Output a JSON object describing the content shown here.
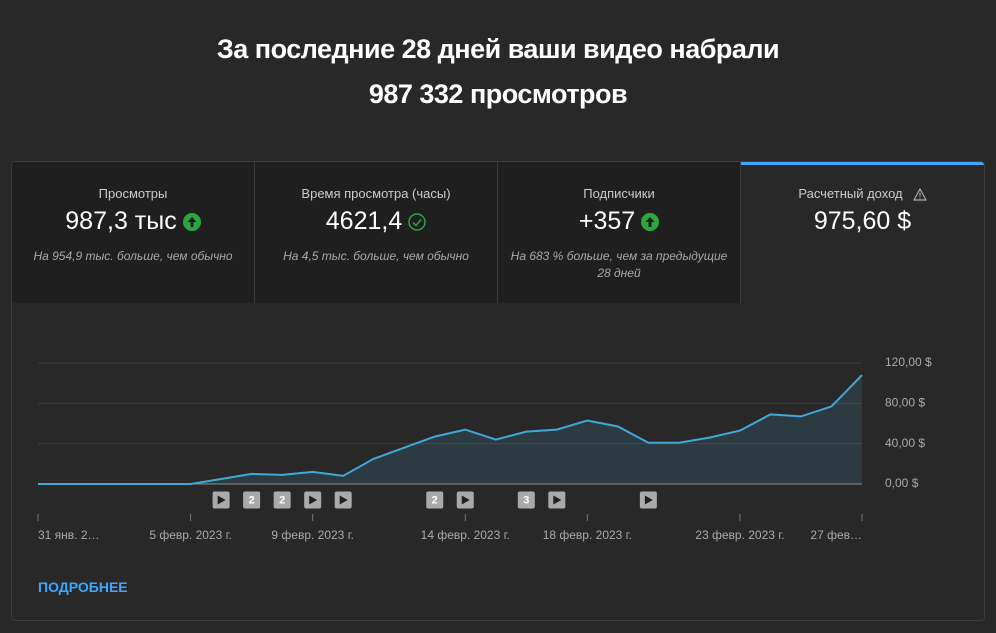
{
  "header": {
    "title_line1": "За последние 28 дней ваши видео набрали",
    "title_line2": "987 332 просмотров"
  },
  "tabs": [
    {
      "title": "Просмотры",
      "value": "987,3 тыс",
      "note": "На 954,9 тыс. больше, чем обычно"
    },
    {
      "title": "Время просмотра (часы)",
      "value": "4621,4",
      "note": "На 4,5 тыс. больше, чем обычно"
    },
    {
      "title": "Подписчики",
      "value": "+357",
      "note": "На 683 % больше, чем за предыдущие 28 дней"
    },
    {
      "title": "Расчетный доход",
      "value": "975,60 $"
    }
  ],
  "chart_data": {
    "type": "area",
    "categories": [
      "31 янв. 2…",
      null,
      null,
      null,
      null,
      "5 февр. 2023 г.",
      null,
      null,
      null,
      "9 февр. 2023 г.",
      null,
      null,
      null,
      null,
      "14 февр. 2023 г.",
      null,
      null,
      null,
      "18 февр. 2023 г.",
      null,
      null,
      null,
      null,
      "23 февр. 2023 г.",
      null,
      null,
      null,
      "27 фев…"
    ],
    "values": [
      0,
      0,
      0,
      0,
      0,
      0,
      5,
      10,
      9,
      12,
      8,
      25,
      36,
      47,
      54,
      44,
      52,
      54,
      63,
      57,
      41,
      41,
      46,
      53,
      69,
      67,
      77,
      108
    ],
    "video_counts": [
      0,
      0,
      0,
      0,
      0,
      0,
      1,
      2,
      2,
      1,
      1,
      0,
      0,
      2,
      1,
      0,
      3,
      1,
      0,
      0,
      1,
      0,
      0,
      0,
      0,
      0,
      0,
      0
    ],
    "color": "#41a8d8",
    "ylim": [
      0,
      120
    ],
    "yticks": [
      {
        "value": 0,
        "label": "0,00 $"
      },
      {
        "value": 40,
        "label": "40,00 $"
      },
      {
        "value": 80,
        "label": "80,00 $"
      },
      {
        "value": 120,
        "label": "120,00 $"
      }
    ],
    "grid": true
  },
  "link": "ПОДРОБНЕЕ"
}
